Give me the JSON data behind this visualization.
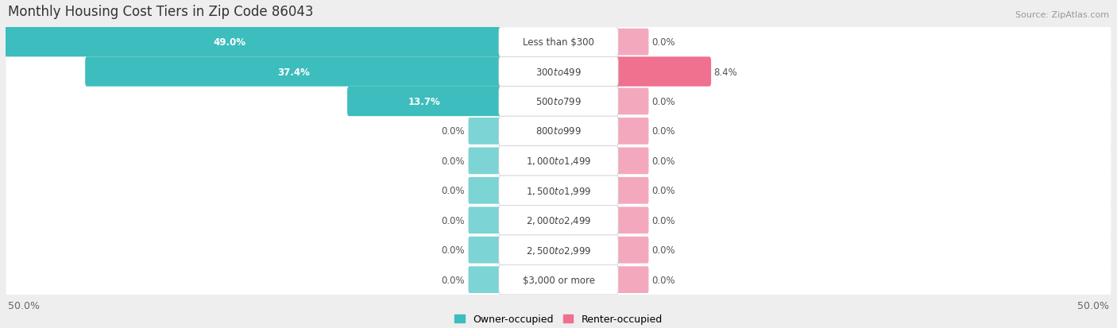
{
  "title": "Monthly Housing Cost Tiers in Zip Code 86043",
  "source": "Source: ZipAtlas.com",
  "categories": [
    "Less than $300",
    "$300 to $499",
    "$500 to $799",
    "$800 to $999",
    "$1,000 to $1,499",
    "$1,500 to $1,999",
    "$2,000 to $2,499",
    "$2,500 to $2,999",
    "$3,000 or more"
  ],
  "owner_values": [
    49.0,
    37.4,
    13.7,
    0.0,
    0.0,
    0.0,
    0.0,
    0.0,
    0.0
  ],
  "renter_values": [
    0.0,
    8.4,
    0.0,
    0.0,
    0.0,
    0.0,
    0.0,
    0.0,
    0.0
  ],
  "owner_color": "#3DBDBD",
  "renter_color": "#F07090",
  "owner_color_light": "#7DD4D4",
  "renter_color_light": "#F4A8BE",
  "bg_color": "#eeeeee",
  "axis_limit": 50.0,
  "title_fontsize": 12,
  "label_fontsize": 8.5,
  "tick_fontsize": 9,
  "legend_fontsize": 9
}
